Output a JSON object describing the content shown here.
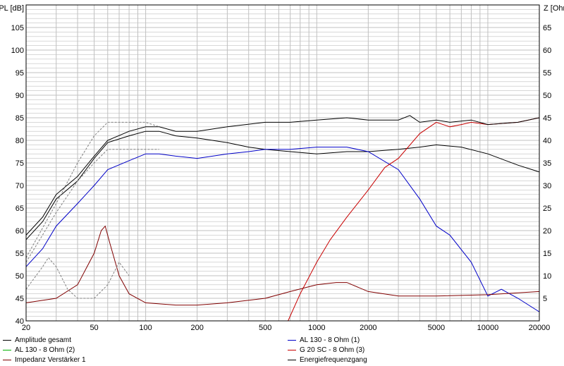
{
  "chart_data": {
    "type": "line",
    "xscale": "log",
    "xlim": [
      20,
      20000
    ],
    "ylim_left": [
      40,
      110
    ],
    "ylim_right": [
      0,
      70
    ],
    "ylabel_left": "SPL [dB]",
    "ylabel_right": "Z [Ohm]",
    "x_ticks": [
      "20",
      "50",
      "100",
      "200",
      "500",
      "1000",
      "2000",
      "5000",
      "10000",
      "20000"
    ],
    "y_ticks_left": [
      "40",
      "45",
      "50",
      "55",
      "60",
      "65",
      "70",
      "75",
      "80",
      "85",
      "90",
      "95",
      "100",
      "105"
    ],
    "y_ticks_right": [
      "5",
      "10",
      "15",
      "20",
      "25",
      "30",
      "35",
      "40",
      "45",
      "50",
      "55",
      "60",
      "65"
    ],
    "colors": {
      "black": "#000000",
      "blue": "#0000c8",
      "red": "#c80000",
      "dark_red": "#800000",
      "green": "#00b000",
      "gray": "#808080",
      "grid": "#c0c0c0"
    },
    "series": [
      {
        "name": "Amplitude gesamt",
        "color": "black",
        "axis": "left",
        "x": [
          20,
          25,
          30,
          40,
          50,
          60,
          80,
          100,
          120,
          150,
          200,
          300,
          400,
          500,
          700,
          1000,
          1500,
          2000,
          3000,
          4000,
          5000,
          7000,
          10000,
          15000,
          20000
        ],
        "y": [
          58,
          62,
          67,
          71,
          76,
          79.5,
          81,
          82,
          82,
          81,
          80.5,
          79.5,
          78.5,
          78,
          77.5,
          77,
          77.5,
          77.5,
          78,
          78.5,
          79,
          78.5,
          77,
          74.5,
          73
        ]
      },
      {
        "name": "AL 130 - 8 Ohm (1)",
        "color": "blue",
        "axis": "left",
        "x": [
          20,
          25,
          30,
          40,
          50,
          60,
          80,
          100,
          120,
          150,
          200,
          300,
          400,
          500,
          700,
          1000,
          1500,
          2000,
          3000,
          4000,
          5000,
          6000,
          8000,
          10000,
          12000,
          15000,
          20000
        ],
        "y": [
          52,
          56,
          61,
          66,
          70,
          73.5,
          75.5,
          77,
          77,
          76.5,
          76,
          77,
          77.5,
          78,
          78,
          78.5,
          78.5,
          77.5,
          73.5,
          67,
          61,
          59,
          53,
          45.5,
          47,
          45,
          42
        ]
      },
      {
        "name": "AL 130 - 8 Ohm (2)",
        "color": "green",
        "axis": "left",
        "x": [],
        "y": []
      },
      {
        "name": "G 20 SC - 8 Ohm (3)",
        "color": "red",
        "axis": "left",
        "x": [
          680,
          800,
          1000,
          1200,
          1500,
          2000,
          2500,
          3000,
          4000,
          5000,
          6000,
          7000,
          8000,
          10000,
          15000,
          20000
        ],
        "y": [
          40,
          46,
          53,
          58,
          63,
          69,
          74,
          76,
          81.5,
          84,
          83,
          83.5,
          84,
          83.5,
          84,
          85
        ]
      },
      {
        "name": "Impedanz Verstärker 1",
        "color": "dark_red",
        "axis": "right",
        "x": [
          20,
          30,
          40,
          50,
          55,
          58,
          62,
          70,
          80,
          100,
          150,
          200,
          300,
          500,
          700,
          1000,
          1300,
          1500,
          2000,
          3000,
          5000,
          10000,
          20000
        ],
        "y": [
          4,
          5,
          8,
          15,
          20,
          21,
          17,
          10,
          6,
          4,
          3.5,
          3.5,
          4,
          5,
          6.5,
          8,
          8.5,
          8.5,
          6.5,
          5.5,
          5.5,
          5.8,
          6.5
        ]
      },
      {
        "name": "Energiefrequenzgang",
        "color": "black",
        "axis": "left",
        "x": [
          20,
          25,
          30,
          40,
          50,
          60,
          80,
          100,
          120,
          150,
          200,
          300,
          500,
          700,
          1000,
          1500,
          2000,
          3000,
          3500,
          4000,
          5000,
          6000,
          8000,
          10000,
          15000,
          20000
        ],
        "y": [
          59,
          63,
          68,
          72,
          76.5,
          80,
          82,
          83,
          83,
          82,
          82,
          83,
          84,
          84,
          84.5,
          85,
          84.5,
          84.5,
          85.5,
          84,
          84.5,
          84,
          84.5,
          83.5,
          84,
          85
        ]
      },
      {
        "name": "",
        "color": "gray",
        "dashed": true,
        "axis": "left",
        "x": [
          20,
          30,
          40,
          50,
          60,
          80,
          100,
          120
        ],
        "y": [
          54,
          66,
          75,
          81,
          84,
          84,
          84,
          83
        ]
      },
      {
        "name": "",
        "color": "gray",
        "dashed": true,
        "axis": "left",
        "x": [
          20,
          30,
          40,
          50,
          60,
          70,
          80,
          100,
          120
        ],
        "y": [
          53,
          64,
          71,
          75,
          78,
          78,
          78,
          78,
          78
        ]
      },
      {
        "name": "",
        "color": "gray",
        "dashed": true,
        "axis": "right",
        "x": [
          20,
          25,
          27,
          30,
          35,
          40,
          45,
          50,
          60,
          70,
          80
        ],
        "y": [
          7,
          12,
          14,
          12,
          7,
          5,
          5,
          5,
          8,
          13,
          10
        ]
      }
    ],
    "legend": {
      "placement": "bottom",
      "entries": [
        {
          "label": "Amplitude gesamt",
          "color": "black"
        },
        {
          "label": "AL 130 - 8 Ohm (2)",
          "color": "green"
        },
        {
          "label": "Impedanz Verstärker 1",
          "color": "dark_red"
        },
        {
          "label": "AL 130 - 8 Ohm (1)",
          "color": "blue"
        },
        {
          "label": "G 20 SC - 8 Ohm (3)",
          "color": "red"
        },
        {
          "label": "Energiefrequenzgang",
          "color": "black"
        }
      ]
    }
  }
}
